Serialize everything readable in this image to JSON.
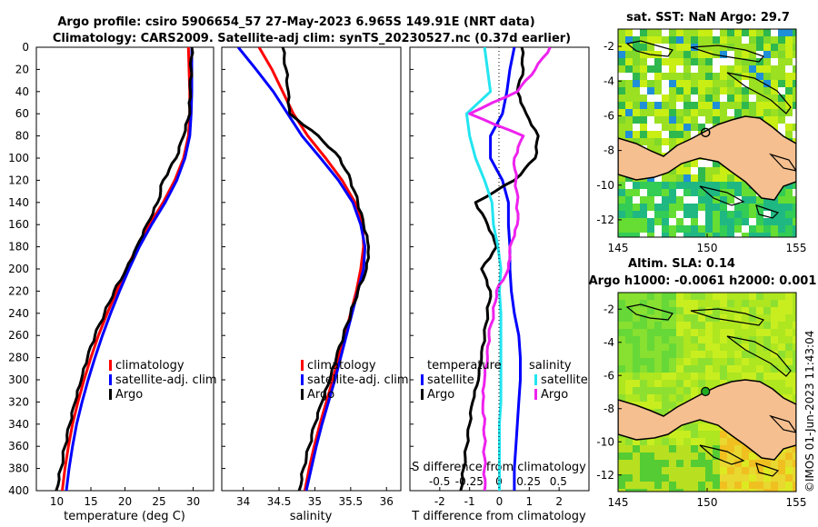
{
  "header": {
    "title_line1": "Argo profile: csiro 5906654_57 27-May-2023 6.965S 149.91E (NRT data)",
    "title_line2": "Climatology: CARS2009. Satellite-adj clim: synTS_20230527.nc (0.37d earlier)"
  },
  "timestamp": "©IMOS 01-Jun-2023 11:43:04",
  "depth_ticks": [
    "0",
    "20",
    "40",
    "60",
    "80",
    "100",
    "120",
    "140",
    "160",
    "180",
    "200",
    "220",
    "240",
    "260",
    "280",
    "300",
    "320",
    "340",
    "360",
    "380",
    "400"
  ],
  "colors": {
    "climatology": "#ff0000",
    "satellite": "#0000ff",
    "argo": "#000000",
    "sal_sat": "#22e5f0",
    "sal_argo": "#ee22ee"
  },
  "chart_data": [
    {
      "type": "line",
      "title": "",
      "xlabel": "temperature (deg C)",
      "ylabel": "",
      "xlim": [
        7,
        33
      ],
      "ylim": [
        400,
        0
      ],
      "xticks": [
        "10",
        "15",
        "20",
        "25",
        "30"
      ],
      "legend": [
        "climatology",
        "satellite-adj. clim",
        "Argo"
      ],
      "series": [
        {
          "name": "climatology",
          "x": [
            29.3,
            29.4,
            29.5,
            29.5,
            29.3,
            28.6,
            27.3,
            25.6,
            23.6,
            21.8,
            20.2,
            18.8,
            17.4,
            16.1,
            15.0,
            14.0,
            13.1,
            12.3,
            11.7,
            11.2,
            10.8
          ],
          "y": [
            0,
            20,
            40,
            60,
            80,
            100,
            120,
            140,
            160,
            180,
            200,
            220,
            240,
            260,
            280,
            300,
            320,
            340,
            360,
            380,
            400
          ]
        },
        {
          "name": "satellite-adj. clim",
          "x": [
            29.8,
            29.8,
            29.8,
            29.7,
            29.5,
            28.8,
            27.6,
            25.9,
            23.9,
            22.1,
            20.6,
            19.2,
            17.9,
            16.7,
            15.6,
            14.6,
            13.7,
            12.9,
            12.3,
            11.8,
            11.4
          ],
          "y": [
            0,
            20,
            40,
            60,
            80,
            100,
            120,
            140,
            160,
            180,
            200,
            220,
            240,
            260,
            280,
            300,
            320,
            340,
            360,
            380,
            400
          ]
        },
        {
          "name": "Argo",
          "x": [
            29.8,
            29.7,
            29.6,
            29.5,
            28.6,
            27.5,
            25.6,
            24.8,
            23.2,
            21.7,
            20.2,
            18.4,
            17.0,
            15.6,
            14.5,
            13.6,
            12.7,
            11.9,
            11.2,
            10.6,
            9.9
          ],
          "y": [
            0,
            20,
            40,
            60,
            80,
            100,
            120,
            140,
            160,
            180,
            200,
            220,
            240,
            260,
            280,
            300,
            320,
            340,
            360,
            380,
            400
          ]
        }
      ]
    },
    {
      "type": "line",
      "title": "",
      "xlabel": "salinity",
      "ylabel": "",
      "xlim": [
        33.7,
        36.2
      ],
      "ylim": [
        400,
        0
      ],
      "xticks": [
        "34",
        "34.5",
        "35",
        "35.5",
        "36"
      ],
      "legend": [
        "climatology",
        "satellite-adj. clim",
        "Argo"
      ],
      "series": [
        {
          "name": "climatology",
          "x": [
            34.22,
            34.4,
            34.55,
            34.7,
            34.9,
            35.15,
            35.38,
            35.56,
            35.67,
            35.68,
            35.64,
            35.58,
            35.5,
            35.42,
            35.33,
            35.25,
            35.16,
            35.07,
            34.99,
            34.92,
            34.86
          ],
          "y": [
            0,
            20,
            40,
            60,
            80,
            100,
            120,
            140,
            160,
            180,
            200,
            220,
            240,
            260,
            280,
            300,
            320,
            340,
            360,
            380,
            400
          ]
        },
        {
          "name": "satellite-adj. clim",
          "x": [
            33.93,
            34.18,
            34.42,
            34.62,
            34.82,
            35.08,
            35.33,
            35.53,
            35.64,
            35.7,
            35.68,
            35.6,
            35.52,
            35.44,
            35.36,
            35.28,
            35.19,
            35.1,
            35.02,
            34.95,
            34.88
          ],
          "y": [
            0,
            20,
            40,
            60,
            80,
            100,
            120,
            140,
            160,
            180,
            200,
            220,
            240,
            260,
            280,
            300,
            320,
            340,
            360,
            380,
            400
          ]
        },
        {
          "name": "Argo",
          "x": [
            34.55,
            34.6,
            34.63,
            34.65,
            35.05,
            35.35,
            35.5,
            35.6,
            35.68,
            35.75,
            35.72,
            35.6,
            35.5,
            35.4,
            35.3,
            35.21,
            35.1,
            35.0,
            34.92,
            34.84,
            34.78
          ],
          "y": [
            0,
            20,
            40,
            60,
            80,
            100,
            120,
            140,
            160,
            180,
            200,
            220,
            240,
            260,
            280,
            300,
            320,
            340,
            360,
            380,
            400
          ]
        }
      ]
    },
    {
      "type": "line",
      "title": "",
      "xlabel": "T difference from climatology",
      "ylabel": "",
      "xlim": [
        -3,
        3
      ],
      "ylim": [
        400,
        0
      ],
      "xticks": [
        "-2",
        "-1",
        "0",
        "1",
        "2"
      ],
      "secondary_xlabel": "S difference from climatology",
      "secondary_xticks": [
        "-0.5",
        "-0.25",
        "0",
        "0.25",
        "0.5"
      ],
      "legend_groups": [
        {
          "title": "temperature",
          "entries": [
            "satellite",
            "Argo"
          ]
        },
        {
          "title": "salinity",
          "entries": [
            "satellite",
            "Argo"
          ]
        }
      ],
      "series": [
        {
          "name": "temperature satellite",
          "x": [
            0.5,
            0.35,
            0.25,
            0.1,
            -0.3,
            -0.3,
            0.1,
            0.3,
            0.3,
            0.35,
            0.35,
            0.4,
            0.5,
            0.65,
            0.7,
            0.7,
            0.65,
            0.6,
            0.55,
            0.5,
            0.5
          ],
          "y": [
            0,
            20,
            40,
            60,
            80,
            100,
            120,
            140,
            160,
            180,
            200,
            220,
            240,
            260,
            280,
            300,
            320,
            340,
            360,
            380,
            400
          ]
        },
        {
          "name": "temperature Argo",
          "x": [
            0.75,
            0.8,
            0.6,
            0.9,
            1.3,
            1.2,
            0.5,
            -0.8,
            -0.4,
            -0.1,
            -0.6,
            -0.3,
            -0.4,
            -0.5,
            -0.6,
            -0.7,
            -0.9,
            -1.0,
            -1.1,
            -1.2,
            -1.3
          ],
          "y": [
            0,
            20,
            40,
            60,
            80,
            100,
            120,
            140,
            160,
            180,
            200,
            220,
            240,
            260,
            280,
            300,
            320,
            340,
            360,
            380,
            400
          ]
        },
        {
          "name": "salinity satellite",
          "x": [
            -0.5,
            -0.4,
            -0.3,
            -1.1,
            -1.0,
            -0.8,
            -0.5,
            -0.25,
            -0.2,
            -0.05,
            0.05,
            0.0,
            0.05,
            0.05,
            0.05,
            0.05,
            0.05,
            0.0,
            0.0,
            0.0,
            0.0
          ],
          "y": [
            0,
            20,
            40,
            60,
            80,
            100,
            120,
            140,
            160,
            180,
            200,
            220,
            240,
            260,
            280,
            300,
            320,
            340,
            360,
            380,
            400
          ]
        },
        {
          "name": "salinity Argo",
          "x": [
            1.7,
            1.2,
            0.6,
            -1.0,
            0.8,
            0.5,
            0.55,
            0.6,
            0.6,
            0.35,
            0.3,
            -0.1,
            -0.2,
            -0.35,
            -0.4,
            -0.5,
            -0.55,
            -0.5,
            -0.5,
            -0.5,
            -0.5
          ],
          "y": [
            0,
            20,
            40,
            60,
            80,
            100,
            120,
            140,
            160,
            180,
            200,
            220,
            240,
            260,
            280,
            300,
            320,
            340,
            360,
            380,
            400
          ]
        }
      ]
    },
    {
      "type": "heatmap",
      "title": "sat. SST: NaN Argo: 29.7",
      "xlim": [
        145,
        155
      ],
      "ylim": [
        -13,
        -1
      ],
      "xticks": [
        "145",
        "150",
        "155"
      ],
      "yticks": [
        "-2",
        "-4",
        "-6",
        "-8",
        "-10",
        "-12"
      ],
      "marker": {
        "lon": 149.91,
        "lat": -6.965
      }
    },
    {
      "type": "heatmap",
      "title": "Altim. SLA: 0.14",
      "subtitle": "Argo h1000: -0.0061 h2000: 0.001",
      "xlim": [
        145,
        155
      ],
      "ylim": [
        -13,
        -1
      ],
      "xticks": [
        "145",
        "150",
        "155"
      ],
      "yticks": [
        "-2",
        "-4",
        "-6",
        "-8",
        "-10",
        "-12"
      ],
      "marker": {
        "lon": 149.91,
        "lat": -6.965
      }
    }
  ],
  "legend_labels": {
    "climatology": "climatology",
    "satellite_clim": "satellite-adj. clim",
    "argo": "Argo",
    "temperature": "temperature",
    "salinity": "salinity",
    "satellite": "satellite"
  }
}
